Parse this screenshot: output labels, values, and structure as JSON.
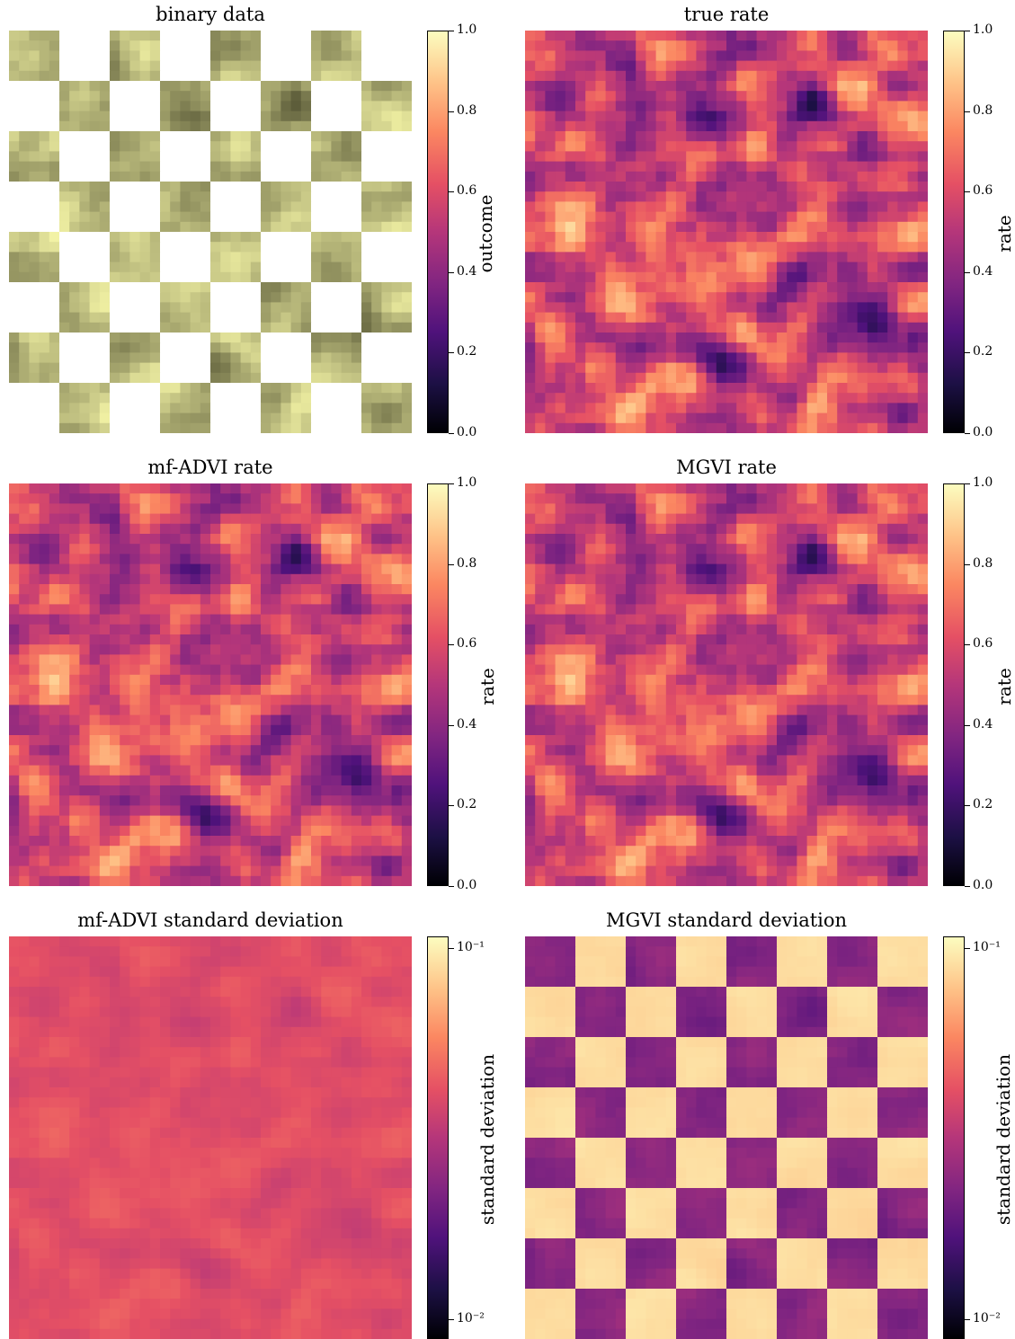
{
  "chart_data": [
    {
      "type": "heatmap",
      "title": "binary data",
      "colorbar": {
        "label": "outcome",
        "scale": "linear",
        "ticks": [
          "0.0",
          "0.2",
          "0.4",
          "0.6",
          "0.8",
          "1.0"
        ],
        "range": [
          0,
          1
        ]
      },
      "pattern": "checkerboard 8x8 of binary samples with white (missing) squares",
      "colormap": "magma"
    },
    {
      "type": "heatmap",
      "title": "true rate",
      "colorbar": {
        "label": "rate",
        "scale": "linear",
        "ticks": [
          "0.0",
          "0.2",
          "0.4",
          "0.6",
          "0.8",
          "1.0"
        ],
        "range": [
          0,
          1
        ]
      },
      "colormap": "magma"
    },
    {
      "type": "heatmap",
      "title": "mf-ADVI rate",
      "colorbar": {
        "label": "rate",
        "scale": "linear",
        "ticks": [
          "0.0",
          "0.2",
          "0.4",
          "0.6",
          "0.8",
          "1.0"
        ],
        "range": [
          0,
          1
        ]
      },
      "colormap": "magma"
    },
    {
      "type": "heatmap",
      "title": "MGVI rate",
      "colorbar": {
        "label": "rate",
        "scale": "linear",
        "ticks": [
          "0.0",
          "0.2",
          "0.4",
          "0.6",
          "0.8",
          "1.0"
        ],
        "range": [
          0,
          1
        ]
      },
      "colormap": "magma"
    },
    {
      "type": "heatmap",
      "title": "mf-ADVI standard deviation",
      "colorbar": {
        "label": "standard deviation",
        "scale": "log",
        "ticks": [
          "10⁻²",
          "10⁻¹"
        ],
        "range": [
          0.01,
          0.1
        ]
      },
      "colormap": "magma"
    },
    {
      "type": "heatmap",
      "title": "MGVI standard deviation",
      "colorbar": {
        "label": "standard deviation",
        "scale": "log",
        "ticks": [
          "10⁻²",
          "10⁻¹"
        ],
        "range": [
          0.01,
          0.1
        ]
      },
      "pattern": "checkerboard 8x8 with high uncertainty in missing squares",
      "colormap": "magma"
    }
  ]
}
